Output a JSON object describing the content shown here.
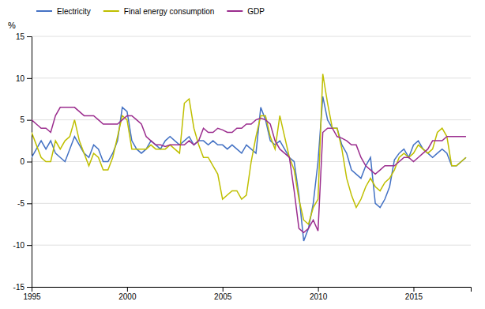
{
  "chart_data": {
    "type": "line",
    "ylabel": "%",
    "x": [
      1995.0,
      1995.25,
      1995.5,
      1995.75,
      1996.0,
      1996.25,
      1996.5,
      1996.75,
      1997.0,
      1997.25,
      1997.5,
      1997.75,
      1998.0,
      1998.25,
      1998.5,
      1998.75,
      1999.0,
      1999.25,
      1999.5,
      1999.75,
      2000.0,
      2000.25,
      2000.5,
      2000.75,
      2001.0,
      2001.25,
      2001.5,
      2001.75,
      2002.0,
      2002.25,
      2002.5,
      2002.75,
      2003.0,
      2003.25,
      2003.5,
      2003.75,
      2004.0,
      2004.25,
      2004.5,
      2004.75,
      2005.0,
      2005.25,
      2005.5,
      2005.75,
      2006.0,
      2006.25,
      2006.5,
      2006.75,
      2007.0,
      2007.25,
      2007.5,
      2007.75,
      2008.0,
      2008.25,
      2008.5,
      2008.75,
      2009.0,
      2009.25,
      2009.5,
      2009.75,
      2010.0,
      2010.25,
      2010.5,
      2010.75,
      2011.0,
      2011.25,
      2011.5,
      2011.75,
      2012.0,
      2012.25,
      2012.5,
      2012.75,
      2013.0,
      2013.25,
      2013.5,
      2013.75,
      2014.0,
      2014.25,
      2014.5,
      2014.75,
      2015.0,
      2015.25,
      2015.5,
      2015.75,
      2016.0,
      2016.25,
      2016.5,
      2016.75,
      2017.0,
      2017.25,
      2017.5,
      2017.75
    ],
    "series": [
      {
        "name": "Electricity",
        "color": "#4472c4",
        "values": [
          0.5,
          1.5,
          2.5,
          1.5,
          2.5,
          1.0,
          0.5,
          0.0,
          1.5,
          3.0,
          2.0,
          1.0,
          0.5,
          2.0,
          1.5,
          0.0,
          0.0,
          1.0,
          2.5,
          6.5,
          6.0,
          2.5,
          1.5,
          1.0,
          1.5,
          2.5,
          2.0,
          1.5,
          2.5,
          3.0,
          2.5,
          2.0,
          2.5,
          3.0,
          2.0,
          2.5,
          2.5,
          2.0,
          2.5,
          2.0,
          2.0,
          1.5,
          2.0,
          1.5,
          1.0,
          2.0,
          1.5,
          1.0,
          6.5,
          5.0,
          2.5,
          2.0,
          2.5,
          1.5,
          0.5,
          0.0,
          -4.0,
          -9.5,
          -8.0,
          -5.0,
          0.0,
          7.8,
          5.0,
          4.0,
          4.0,
          2.0,
          1.0,
          -1.0,
          -1.5,
          -2.0,
          -0.5,
          0.5,
          -5.0,
          -5.5,
          -4.5,
          -3.0,
          0.2,
          1.0,
          1.5,
          0.5,
          2.0,
          2.5,
          1.5,
          1.0,
          0.5,
          1.0,
          1.5,
          1.0,
          -0.5,
          -0.5,
          0.0,
          0.5
        ]
      },
      {
        "name": "Final energy consumption",
        "color": "#bfbf00",
        "values": [
          3.5,
          2.0,
          0.5,
          0.0,
          0.0,
          2.5,
          1.5,
          2.5,
          3.0,
          5.0,
          2.5,
          1.0,
          -0.5,
          1.0,
          0.5,
          -1.0,
          -1.0,
          0.5,
          3.0,
          5.5,
          5.0,
          1.5,
          1.5,
          1.5,
          1.5,
          2.0,
          1.5,
          1.5,
          1.5,
          2.0,
          1.5,
          1.0,
          7.0,
          7.5,
          4.0,
          2.0,
          0.5,
          0.5,
          -0.5,
          -1.5,
          -4.5,
          -4.0,
          -3.5,
          -3.5,
          -4.5,
          -4.0,
          0.0,
          3.0,
          5.5,
          5.5,
          3.0,
          1.5,
          5.5,
          3.0,
          0.5,
          -1.0,
          -4.5,
          -7.0,
          -7.5,
          -5.5,
          -4.5,
          10.5,
          7.0,
          4.0,
          4.0,
          1.5,
          -2.0,
          -4.0,
          -5.5,
          -4.5,
          -3.0,
          -2.0,
          -3.0,
          -3.5,
          -2.5,
          -2.0,
          -1.0,
          0.5,
          1.0,
          0.5,
          1.0,
          2.0,
          1.5,
          1.0,
          1.5,
          3.5,
          4.0,
          3.0,
          -0.5,
          -0.5,
          0.0,
          0.5
        ]
      },
      {
        "name": "GDP",
        "color": "#9b2d8e",
        "values": [
          5.0,
          4.5,
          4.0,
          4.0,
          3.5,
          5.5,
          6.5,
          6.5,
          6.5,
          6.5,
          6.0,
          5.5,
          5.5,
          5.5,
          5.0,
          4.5,
          4.5,
          4.5,
          4.5,
          5.0,
          5.5,
          5.5,
          5.0,
          4.5,
          3.0,
          2.5,
          2.0,
          2.0,
          1.8,
          2.0,
          2.0,
          2.0,
          2.0,
          2.5,
          2.0,
          2.5,
          4.0,
          3.5,
          3.5,
          4.0,
          3.8,
          3.5,
          3.5,
          4.0,
          4.0,
          4.5,
          4.5,
          5.0,
          5.2,
          5.0,
          4.5,
          2.5,
          1.5,
          1.0,
          0.5,
          -3.5,
          -8.0,
          -8.5,
          -8.0,
          -7.0,
          -8.3,
          3.5,
          4.0,
          4.0,
          3.0,
          2.8,
          2.5,
          2.0,
          2.0,
          0.5,
          -0.5,
          -1.0,
          -1.5,
          -1.0,
          -0.5,
          -0.5,
          -0.5,
          0.0,
          0.5,
          0.5,
          0.0,
          0.5,
          1.0,
          1.5,
          2.5,
          2.5,
          2.5,
          3.0,
          3.0,
          3.0,
          3.0,
          3.0
        ]
      }
    ],
    "xlim": [
      1995,
      2018
    ],
    "xticks": [
      1995,
      2000,
      2005,
      2010,
      2015
    ],
    "ylim": [
      -15,
      15
    ],
    "yticks": [
      -15,
      -10,
      -5,
      0,
      5,
      10,
      15
    ],
    "grid": true,
    "legend": "upper left"
  }
}
